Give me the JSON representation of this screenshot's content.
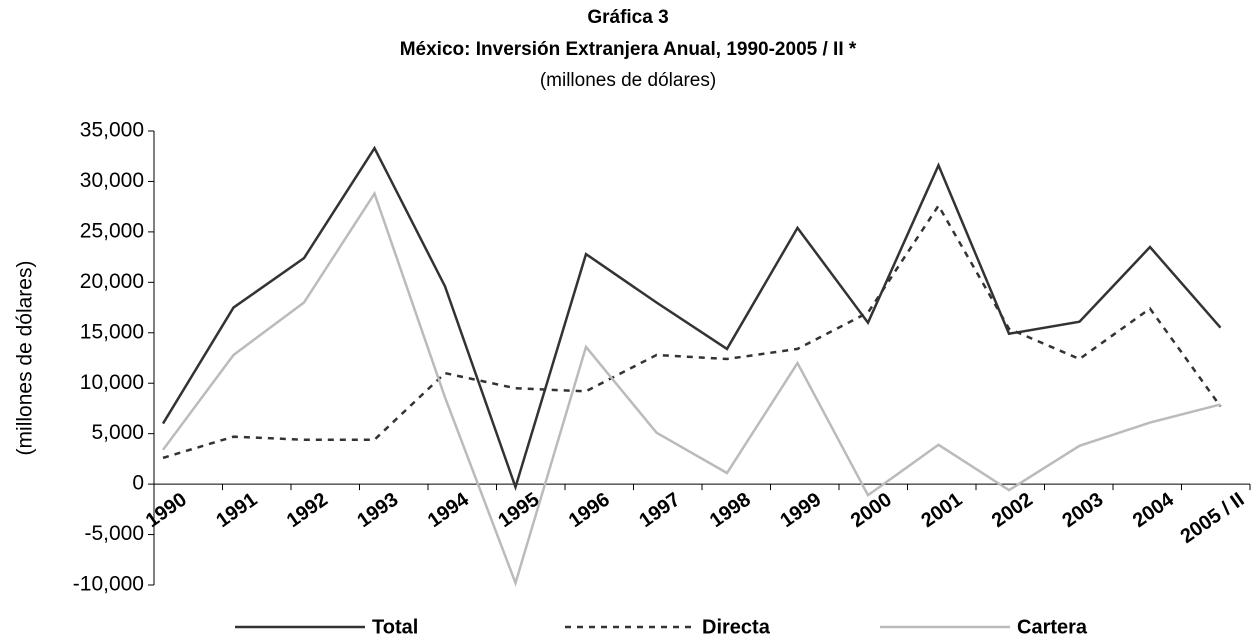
{
  "chart_data": {
    "type": "line",
    "title": "Gráfica 3",
    "subtitle": "México: Inversión Extranjera Anual, 1990-2005 / II *",
    "subtitle2": "(millones de dólares)",
    "y_label": "(millones de dólares)",
    "categories": [
      "1990",
      "1991",
      "1992",
      "1993",
      "1994",
      "1995",
      "1996",
      "1997",
      "1998",
      "1999",
      "2000",
      "2001",
      "2002",
      "2003",
      "2004",
      "2005 / II"
    ],
    "series": [
      {
        "name": "Total",
        "color": "#333333",
        "dash": "solid",
        "values": [
          6000,
          17500,
          22400,
          33300,
          19600,
          -300,
          22800,
          18000,
          13400,
          25400,
          16000,
          31600,
          14900,
          16100,
          23500,
          15500
        ]
      },
      {
        "name": "Directa",
        "color": "#333333",
        "dash": "dashed",
        "values": [
          2600,
          4700,
          4400,
          4400,
          11000,
          9500,
          9200,
          12800,
          12400,
          13400,
          17000,
          27600,
          15400,
          12400,
          17400,
          7700
        ]
      },
      {
        "name": "Cartera",
        "color": "#bbbbbb",
        "dash": "solid",
        "values": [
          3400,
          12800,
          18000,
          28800,
          8600,
          -9800,
          13600,
          5100,
          1100,
          12000,
          -1100,
          3900,
          -600,
          3800,
          6100,
          7900
        ]
      }
    ],
    "ylim": [
      -10000,
      35000
    ],
    "yticks": [
      {
        "value": -10000,
        "label": "-10,000"
      },
      {
        "value": -5000,
        "label": "-5,000"
      },
      0,
      {
        "value": 5000,
        "label": "5,000"
      },
      {
        "value": 10000,
        "label": "10,000"
      },
      {
        "value": 15000,
        "label": "15,000"
      },
      {
        "value": 20000,
        "label": "20,000"
      },
      {
        "value": 25000,
        "label": "25,000"
      },
      {
        "value": 30000,
        "label": "30,000"
      },
      {
        "value": 35000,
        "label": "35,000"
      }
    ],
    "legend": "bottom"
  }
}
